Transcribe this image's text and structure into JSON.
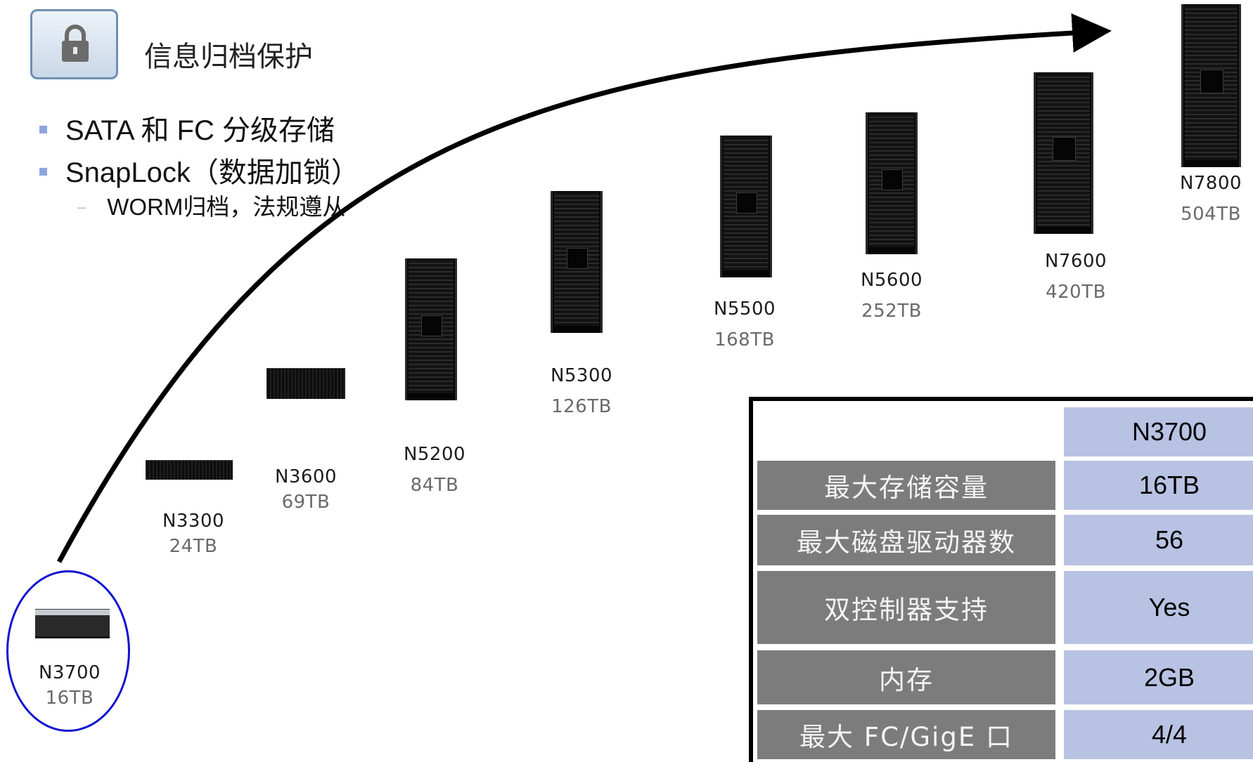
{
  "header": {
    "icon": "padlock-icon",
    "title": "信息归档保护"
  },
  "features": [
    {
      "text": "SATA 和 FC 分级存储"
    },
    {
      "text": "SnapLock（数据加锁）"
    }
  ],
  "sub_features": [
    {
      "text": "WORM归档，法规遵从"
    }
  ],
  "products": [
    {
      "name": "N3700",
      "capacity": "16TB",
      "highlighted": true
    },
    {
      "name": "N3300",
      "capacity": "24TB"
    },
    {
      "name": "N3600",
      "capacity": "69TB"
    },
    {
      "name": "N5200",
      "capacity": "84TB"
    },
    {
      "name": "N5300",
      "capacity": "126TB"
    },
    {
      "name": "N5500",
      "capacity": "168TB"
    },
    {
      "name": "N5600",
      "capacity": "252TB"
    },
    {
      "name": "N7600",
      "capacity": "420TB"
    },
    {
      "name": "N7800",
      "capacity": "504TB"
    }
  ],
  "spec_table": {
    "column_header": "N3700",
    "rows": [
      {
        "label": "最大存储容量",
        "value": "16TB"
      },
      {
        "label": "最大磁盘驱动器数",
        "value": "56"
      },
      {
        "label": "双控制器支持",
        "value": "Yes"
      },
      {
        "label": "内存",
        "value": "2GB"
      },
      {
        "label": "最大 FC/GigE 口",
        "value": "4/4"
      }
    ]
  },
  "colors": {
    "highlight_ring": "#1010d0",
    "bullet": "#8fa3e0",
    "label_cell": "#7c7c7c",
    "value_cell": "#b8c2e2"
  }
}
